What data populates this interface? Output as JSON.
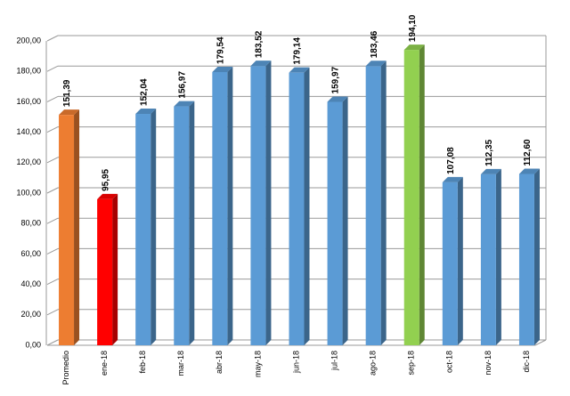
{
  "chart_data": {
    "type": "bar",
    "categories": [
      "Promedio",
      "ene-18",
      "feb-18",
      "mar-18",
      "abr-18",
      "may-18",
      "jun-18",
      "jul-18",
      "ago-18",
      "sep-18",
      "oct-18",
      "nov-18",
      "dic-18"
    ],
    "values": [
      151.39,
      95.95,
      152.04,
      156.97,
      179.54,
      183.52,
      179.14,
      159.97,
      183.46,
      194.1,
      107.08,
      112.35,
      112.6
    ],
    "value_labels": [
      "151,39",
      "95,95",
      "152,04",
      "156,97",
      "179,54",
      "183,52",
      "179,14",
      "159,97",
      "183,46",
      "194,10",
      "107,08",
      "112,35",
      "112,60"
    ],
    "colors": [
      "#ed7d31",
      "#ff0000",
      "#5b9bd5",
      "#5b9bd5",
      "#5b9bd5",
      "#5b9bd5",
      "#5b9bd5",
      "#5b9bd5",
      "#5b9bd5",
      "#92d050",
      "#5b9bd5",
      "#5b9bd5",
      "#5b9bd5"
    ],
    "ylim": [
      0,
      200
    ],
    "yticks": [
      {
        "value": 0,
        "label": "0,00"
      },
      {
        "value": 20,
        "label": "20,00"
      },
      {
        "value": 40,
        "label": "40,00"
      },
      {
        "value": 60,
        "label": "60,00"
      },
      {
        "value": 80,
        "label": "80,00"
      },
      {
        "value": 100,
        "label": "100,00"
      },
      {
        "value": 120,
        "label": "120,00"
      },
      {
        "value": 140,
        "label": "140,00"
      },
      {
        "value": 160,
        "label": "160,00"
      },
      {
        "value": 180,
        "label": "180,00"
      },
      {
        "value": 200,
        "label": "200,00"
      }
    ],
    "grid": true
  }
}
